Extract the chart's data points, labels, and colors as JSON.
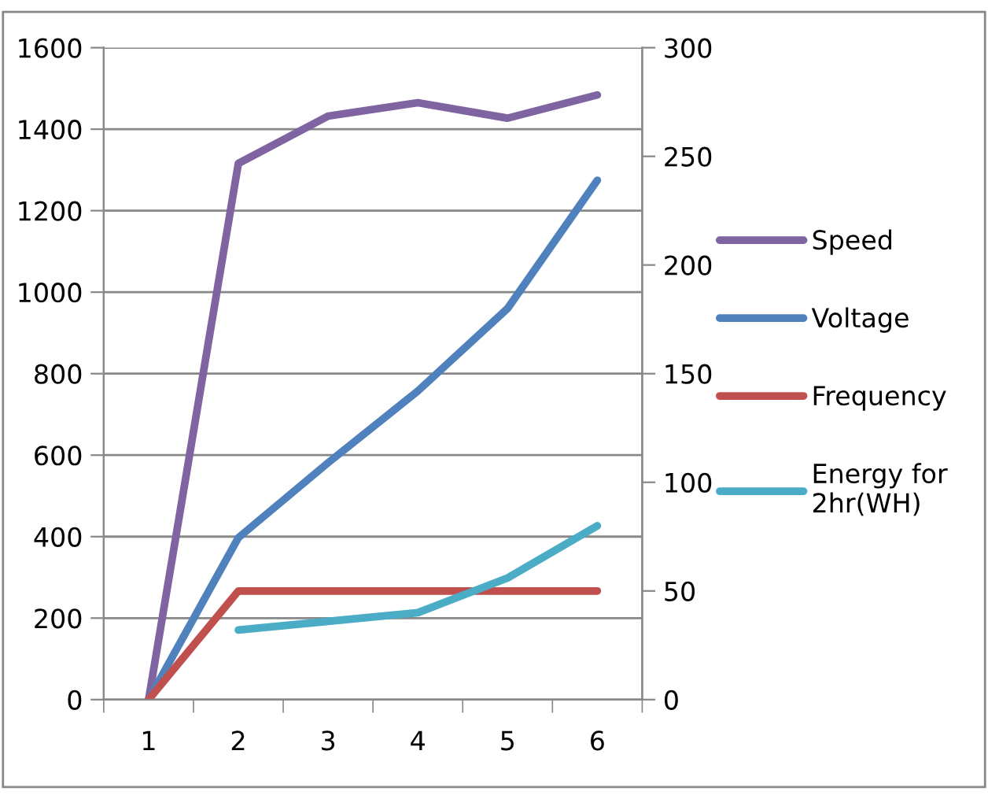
{
  "chart_data": {
    "type": "line",
    "categories": [
      "1",
      "2",
      "3",
      "4",
      "5",
      "6"
    ],
    "series": [
      {
        "name": "Speed",
        "color": "#8064a2",
        "values": [
          0,
          1316,
          1432,
          1465,
          1427,
          1484
        ]
      },
      {
        "name": "Voltage",
        "color": "#4f81bd",
        "axis": "y2",
        "values": [
          0,
          74.5,
          109,
          142,
          180,
          239
        ]
      },
      {
        "name": "Frequency",
        "color": "#c0504d",
        "axis": "y2",
        "values": [
          0,
          50,
          50,
          50,
          50,
          50
        ]
      },
      {
        "name": "Energy for\n2hr(WH)",
        "color": "#4bacc6",
        "axis": "y2",
        "values": [
          null,
          32,
          36,
          40,
          56,
          80
        ]
      }
    ],
    "ylim": [
      0,
      1600
    ],
    "yticks": [
      0,
      200,
      400,
      600,
      800,
      1000,
      1200,
      1400,
      1600
    ],
    "y2lim": [
      0,
      300
    ],
    "y2ticks": [
      0,
      50,
      100,
      150,
      200,
      250,
      300
    ],
    "grid": "y",
    "legend": "right",
    "marker": "none",
    "line_style": "solid"
  }
}
